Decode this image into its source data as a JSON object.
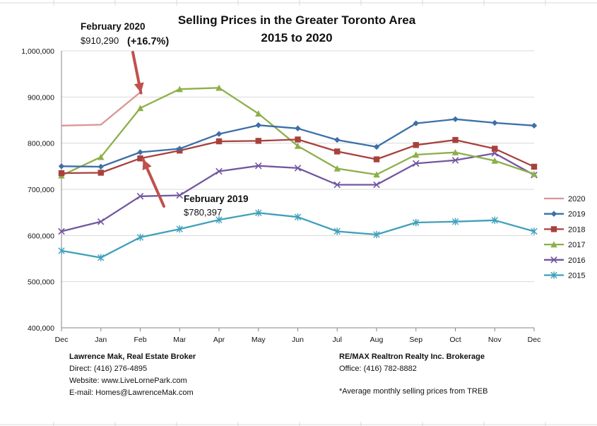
{
  "chart_data": {
    "type": "line",
    "title": "Selling Prices in the Greater Toronto Area",
    "subtitle": "2015 to 2020",
    "categories": [
      "Dec",
      "Jan",
      "Feb",
      "Mar",
      "Apr",
      "May",
      "Jun",
      "Jul",
      "Aug",
      "Sep",
      "Oct",
      "Nov",
      "Dec"
    ],
    "ylim": [
      400000,
      1000000
    ],
    "yticks": [
      400000,
      500000,
      600000,
      700000,
      800000,
      900000,
      1000000
    ],
    "ytick_labels": [
      "400,000",
      "500,000",
      "600,000",
      "700,000",
      "800,000",
      "900,000",
      "1,000,000"
    ],
    "grid": true,
    "legend_placement": "right",
    "series": [
      {
        "name": "2020",
        "color": "#d99594",
        "marker": "none",
        "values": [
          838000,
          840000,
          910290,
          null,
          null,
          null,
          null,
          null,
          null,
          null,
          null,
          null,
          null
        ]
      },
      {
        "name": "2019",
        "color": "#3d6fa7",
        "marker": "diamond",
        "values": [
          750000,
          749000,
          780397,
          788000,
          820000,
          839000,
          832000,
          807000,
          792000,
          843000,
          852000,
          844000,
          838000
        ]
      },
      {
        "name": "2018",
        "color": "#a8413c",
        "marker": "square",
        "values": [
          735000,
          736000,
          767000,
          784000,
          804000,
          805000,
          808000,
          782000,
          765000,
          796000,
          807000,
          788000,
          749000
        ]
      },
      {
        "name": "2017",
        "color": "#8daf4a",
        "marker": "triangle",
        "values": [
          730000,
          770000,
          876000,
          917000,
          920000,
          864000,
          794000,
          745000,
          732000,
          775000,
          780000,
          762000,
          733000
        ]
      },
      {
        "name": "2016",
        "color": "#7356a0",
        "marker": "x",
        "values": [
          609000,
          630000,
          685000,
          687000,
          739000,
          751000,
          746000,
          710000,
          710000,
          756000,
          763000,
          778000,
          731000
        ]
      },
      {
        "name": "2015",
        "color": "#3fa0bb",
        "marker": "star",
        "values": [
          567000,
          552000,
          596000,
          614000,
          634000,
          649000,
          640000,
          609000,
          602000,
          628000,
          630000,
          633000,
          609000
        ]
      }
    ],
    "annotations": [
      {
        "line1": "February 2020",
        "line2": "$910,290",
        "line3": "(+16.7%)"
      },
      {
        "line1": "February 2019",
        "line2": "$780,397"
      }
    ],
    "arrow_color": "#c0504d"
  },
  "footer": {
    "left_name": "Lawrence Mak, Real Estate Broker",
    "left_direct": "Direct:  (416)  276-4895",
    "left_website": "Website:  www.LiveLornePark.com",
    "left_email": "E-mail:  Homes@LawrenceMak.com",
    "right_company": "RE/MAX Realtron Realty Inc. Brokerage",
    "right_office": "Office: (416)  782-8882",
    "right_note": "*Average monthly selling prices from TREB"
  },
  "colors": {
    "grid": "#d9d9d9",
    "axis": "#868686",
    "sheet_grid": "#dadada"
  }
}
